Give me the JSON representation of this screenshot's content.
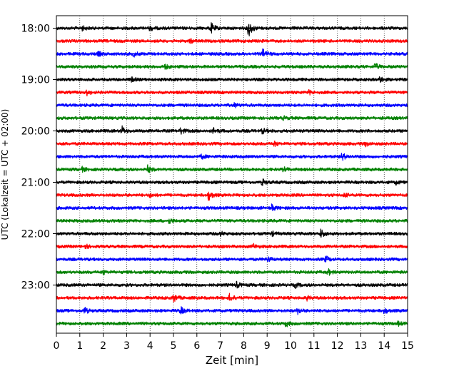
{
  "chart_data": {
    "type": "line",
    "xlabel": "Zeit  [min]",
    "ylabel": "UTC (Lokalzeit = UTC + 02:00)",
    "xlim": [
      0,
      15
    ],
    "x_ticks": [
      0,
      1,
      2,
      3,
      4,
      5,
      6,
      7,
      8,
      9,
      10,
      11,
      12,
      13,
      14,
      15
    ],
    "x_tick_labels": [
      "0",
      "1",
      "2",
      "3",
      "4",
      "5",
      "6",
      "7",
      "8",
      "9",
      "10",
      "11",
      "12",
      "13",
      "14",
      "15"
    ],
    "y_tick_labels": [
      "18:00",
      "19:00",
      "20:00",
      "21:00",
      "22:00",
      "23:00"
    ],
    "grid_x": true,
    "grid_style": "dotted",
    "trace_colors": [
      "#000000",
      "#ff0000",
      "#0000ff",
      "#008000"
    ],
    "traces": [
      {
        "start": "18:00",
        "color": "#000000",
        "events": [
          {
            "t": 6.6,
            "amp": 0.55
          },
          {
            "t": 8.2,
            "amp": 1.0
          },
          {
            "t": 4.0,
            "amp": 0.25
          },
          {
            "t": 1.1,
            "amp": 0.2
          }
        ]
      },
      {
        "start": "18:15",
        "color": "#ff0000",
        "events": [
          {
            "t": 5.7,
            "amp": 0.2
          }
        ]
      },
      {
        "start": "18:30",
        "color": "#0000ff",
        "events": [
          {
            "t": 8.8,
            "amp": 0.5
          },
          {
            "t": 1.8,
            "amp": 0.2
          },
          {
            "t": 3.3,
            "amp": 0.25
          }
        ]
      },
      {
        "start": "18:45",
        "color": "#008000",
        "events": [
          {
            "t": 4.6,
            "amp": 0.3
          },
          {
            "t": 13.6,
            "amp": 0.35
          }
        ]
      },
      {
        "start": "19:00",
        "color": "#000000",
        "events": [
          {
            "t": 13.8,
            "amp": 0.3
          },
          {
            "t": 3.2,
            "amp": 0.2
          }
        ]
      },
      {
        "start": "19:15",
        "color": "#ff0000",
        "events": [
          {
            "t": 1.3,
            "amp": 0.25
          },
          {
            "t": 10.8,
            "amp": 0.2
          }
        ]
      },
      {
        "start": "19:30",
        "color": "#0000ff",
        "events": [
          {
            "t": 7.6,
            "amp": 0.2
          }
        ]
      },
      {
        "start": "19:45",
        "color": "#008000",
        "events": [
          {
            "t": 9.7,
            "amp": 0.15
          }
        ]
      },
      {
        "start": "20:00",
        "color": "#000000",
        "events": [
          {
            "t": 2.8,
            "amp": 0.45
          },
          {
            "t": 5.3,
            "amp": 0.35
          },
          {
            "t": 6.7,
            "amp": 0.3
          },
          {
            "t": 8.8,
            "amp": 0.25
          }
        ]
      },
      {
        "start": "20:15",
        "color": "#ff0000",
        "events": [
          {
            "t": 9.3,
            "amp": 0.25
          },
          {
            "t": 13.2,
            "amp": 0.2
          }
        ]
      },
      {
        "start": "20:30",
        "color": "#0000ff",
        "events": [
          {
            "t": 12.2,
            "amp": 0.4
          },
          {
            "t": 6.2,
            "amp": 0.2
          }
        ]
      },
      {
        "start": "20:45",
        "color": "#008000",
        "events": [
          {
            "t": 3.9,
            "amp": 0.35
          },
          {
            "t": 1.1,
            "amp": 0.2
          },
          {
            "t": 9.7,
            "amp": 0.2
          }
        ]
      },
      {
        "start": "21:00",
        "color": "#000000",
        "events": [
          {
            "t": 8.8,
            "amp": 0.35
          },
          {
            "t": 14.5,
            "amp": 0.2
          }
        ]
      },
      {
        "start": "21:15",
        "color": "#ff0000",
        "events": [
          {
            "t": 6.5,
            "amp": 0.55
          },
          {
            "t": 4.0,
            "amp": 0.2
          },
          {
            "t": 12.3,
            "amp": 0.2
          }
        ]
      },
      {
        "start": "21:30",
        "color": "#0000ff",
        "events": [
          {
            "t": 9.2,
            "amp": 0.35
          }
        ]
      },
      {
        "start": "21:45",
        "color": "#008000",
        "events": [
          {
            "t": 4.8,
            "amp": 0.3
          }
        ]
      },
      {
        "start": "22:00",
        "color": "#000000",
        "events": [
          {
            "t": 11.3,
            "amp": 0.45
          },
          {
            "t": 9.2,
            "amp": 0.2
          },
          {
            "t": 7.0,
            "amp": 0.2
          }
        ]
      },
      {
        "start": "22:15",
        "color": "#ff0000",
        "events": [
          {
            "t": 1.2,
            "amp": 0.25
          },
          {
            "t": 8.4,
            "amp": 0.25
          }
        ]
      },
      {
        "start": "22:30",
        "color": "#0000ff",
        "events": [
          {
            "t": 9.0,
            "amp": 0.3
          },
          {
            "t": 11.5,
            "amp": 0.3
          }
        ]
      },
      {
        "start": "22:45",
        "color": "#008000",
        "events": [
          {
            "t": 11.6,
            "amp": 0.3
          },
          {
            "t": 2.0,
            "amp": 0.2
          }
        ]
      },
      {
        "start": "23:00",
        "color": "#000000",
        "events": [
          {
            "t": 7.7,
            "amp": 0.3
          },
          {
            "t": 10.2,
            "amp": 0.25
          }
        ]
      },
      {
        "start": "23:15",
        "color": "#ff0000",
        "events": [
          {
            "t": 5.0,
            "amp": 0.45
          },
          {
            "t": 7.4,
            "amp": 0.4
          },
          {
            "t": 10.7,
            "amp": 0.2
          }
        ]
      },
      {
        "start": "23:30",
        "color": "#0000ff",
        "events": [
          {
            "t": 1.2,
            "amp": 0.35
          },
          {
            "t": 5.3,
            "amp": 0.4
          },
          {
            "t": 10.3,
            "amp": 0.3
          },
          {
            "t": 14.0,
            "amp": 0.3
          }
        ]
      },
      {
        "start": "23:45",
        "color": "#008000",
        "events": [
          {
            "t": 9.8,
            "amp": 0.3
          },
          {
            "t": 14.6,
            "amp": 0.2
          }
        ]
      }
    ]
  }
}
